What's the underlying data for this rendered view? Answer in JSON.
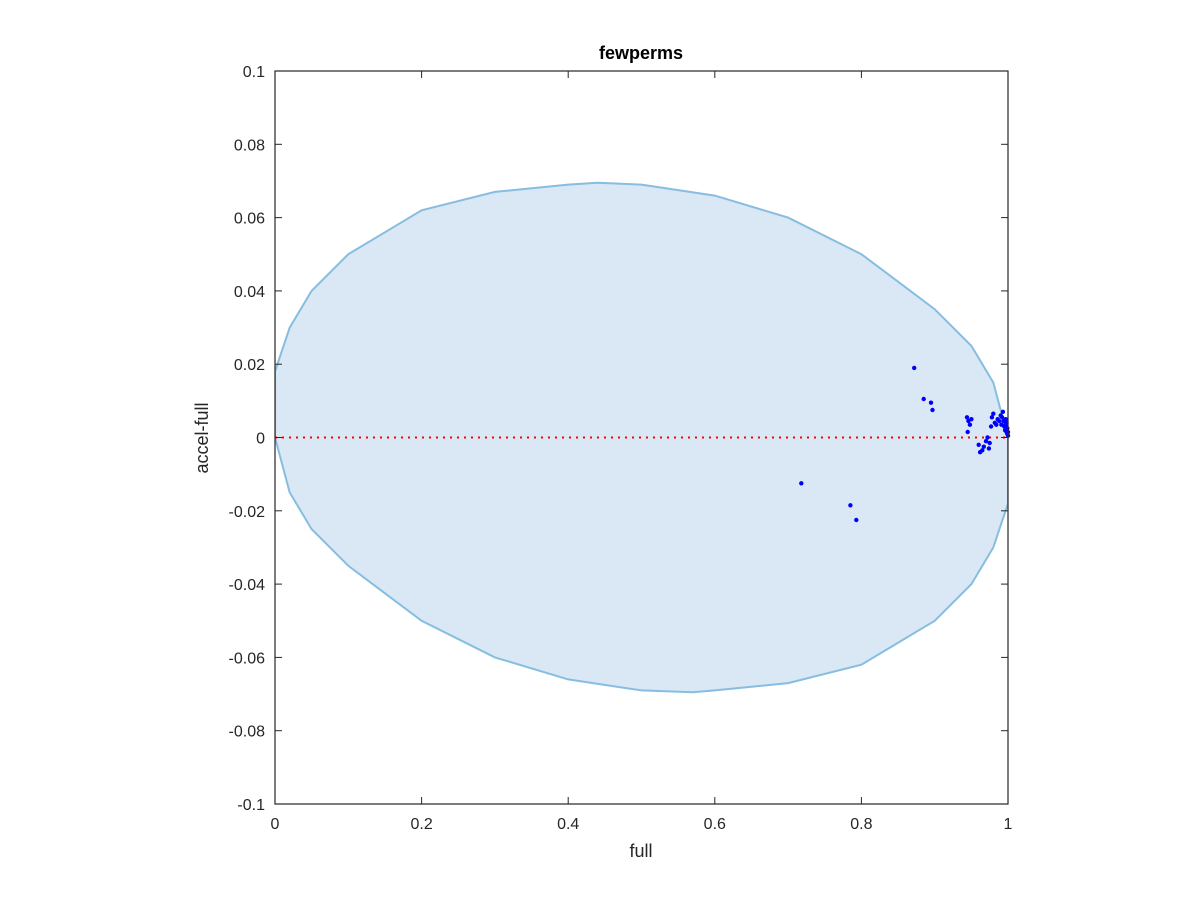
{
  "chart_data": {
    "type": "scatter",
    "title": "fewperms",
    "xlabel": "full",
    "ylabel": "accel-full",
    "xlim": [
      0,
      1
    ],
    "ylim": [
      -0.1,
      0.1
    ],
    "xticks": [
      0,
      0.2,
      0.4,
      0.6,
      0.8,
      1
    ],
    "xtick_labels": [
      "0",
      "0.2",
      "0.4",
      "0.6",
      "0.8",
      "1"
    ],
    "yticks": [
      -0.1,
      -0.08,
      -0.06,
      -0.04,
      -0.02,
      0,
      0.02,
      0.04,
      0.06,
      0.08,
      0.1
    ],
    "ytick_labels": [
      "-0.1",
      "-0.08",
      "-0.06",
      "-0.04",
      "-0.02",
      "0",
      "0.02",
      "0.04",
      "0.06",
      "0.08",
      "0.1"
    ],
    "grid": false,
    "reference_line": {
      "y": 0,
      "color": "#ff0000",
      "style": "dotted"
    },
    "confidence_region": {
      "shape": "ellipse",
      "fill": "#d9e8f4",
      "stroke": "#86bde0",
      "outline": [
        [
          0.0,
          0.018
        ],
        [
          0.02,
          0.03
        ],
        [
          0.05,
          0.04
        ],
        [
          0.1,
          0.05
        ],
        [
          0.2,
          0.062
        ],
        [
          0.3,
          0.067
        ],
        [
          0.4,
          0.069
        ],
        [
          0.44,
          0.0695
        ],
        [
          0.5,
          0.069
        ],
        [
          0.6,
          0.066
        ],
        [
          0.7,
          0.06
        ],
        [
          0.8,
          0.05
        ],
        [
          0.9,
          0.035
        ],
        [
          0.95,
          0.025
        ],
        [
          0.98,
          0.015
        ],
        [
          1.0,
          0.0
        ],
        [
          1.0,
          -0.018
        ],
        [
          0.98,
          -0.03
        ],
        [
          0.95,
          -0.04
        ],
        [
          0.9,
          -0.05
        ],
        [
          0.8,
          -0.062
        ],
        [
          0.7,
          -0.067
        ],
        [
          0.6,
          -0.069
        ],
        [
          0.57,
          -0.0695
        ],
        [
          0.5,
          -0.069
        ],
        [
          0.4,
          -0.066
        ],
        [
          0.3,
          -0.06
        ],
        [
          0.2,
          -0.05
        ],
        [
          0.1,
          -0.035
        ],
        [
          0.05,
          -0.025
        ],
        [
          0.02,
          -0.015
        ],
        [
          0.0,
          0.0
        ]
      ]
    },
    "series": [
      {
        "color": "#0000ff",
        "points": [
          [
            0.872,
            0.019
          ],
          [
            0.885,
            0.0105
          ],
          [
            0.895,
            0.0095
          ],
          [
            0.897,
            0.0075
          ],
          [
            0.718,
            -0.0125
          ],
          [
            0.785,
            -0.0185
          ],
          [
            0.793,
            -0.0225
          ],
          [
            0.944,
            0.0055
          ],
          [
            0.946,
            0.0045
          ],
          [
            0.948,
            0.0035
          ],
          [
            0.945,
            0.0015
          ],
          [
            0.95,
            0.005
          ],
          [
            0.96,
            -0.002
          ],
          [
            0.962,
            -0.004
          ],
          [
            0.965,
            -0.0035
          ],
          [
            0.967,
            -0.0025
          ],
          [
            0.97,
            -0.001
          ],
          [
            0.972,
            0.0
          ],
          [
            0.974,
            -0.003
          ],
          [
            0.975,
            -0.0015
          ],
          [
            0.977,
            0.003
          ],
          [
            0.978,
            0.0055
          ],
          [
            0.98,
            0.0065
          ],
          [
            0.982,
            0.004
          ],
          [
            0.984,
            0.0035
          ],
          [
            0.986,
            0.005
          ],
          [
            0.988,
            0.0045
          ],
          [
            0.99,
            0.006
          ],
          [
            0.991,
            0.0035
          ],
          [
            0.992,
            0.0055
          ],
          [
            0.993,
            0.007
          ],
          [
            0.994,
            0.0045
          ],
          [
            0.995,
            0.003
          ],
          [
            0.996,
            0.002
          ],
          [
            0.997,
            0.005
          ],
          [
            0.998,
            0.0015
          ],
          [
            0.999,
            0.001
          ],
          [
            1.0,
            0.0005
          ],
          [
            0.999,
            0.0025
          ],
          [
            0.997,
            0.0035
          ],
          [
            1.0,
            0.0015
          ],
          [
            0.998,
            0.004
          ]
        ]
      }
    ]
  }
}
